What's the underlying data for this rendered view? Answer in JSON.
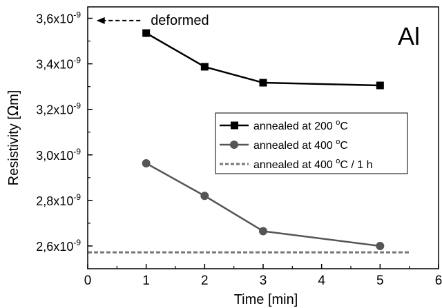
{
  "chart_data": {
    "type": "line",
    "title": "Al",
    "xlabel": "Time [min]",
    "ylabel_prefix": "Resistivity [",
    "ylabel_symbol": "Ω",
    "ylabel_suffix": "m]",
    "xlim": [
      0,
      6
    ],
    "ylim": [
      2.5,
      3.65
    ],
    "x_ticks": [
      0,
      1,
      2,
      3,
      4,
      5,
      6
    ],
    "y_ticks": [
      {
        "value": 2.6,
        "mantissa": "2,6x10",
        "exp": "-9"
      },
      {
        "value": 2.8,
        "mantissa": "2,8x10",
        "exp": "-9"
      },
      {
        "value": 3.0,
        "mantissa": "3,0x10",
        "exp": "-9"
      },
      {
        "value": 3.2,
        "mantissa": "3,2x10",
        "exp": "-9"
      },
      {
        "value": 3.4,
        "mantissa": "3,4x10",
        "exp": "-9"
      },
      {
        "value": 3.6,
        "mantissa": "3,6x10",
        "exp": "-9"
      }
    ],
    "grid": false,
    "legend_position": "middle-right",
    "series": [
      {
        "name": "annealed at 200 °C",
        "name_main": "annealed at 200 ",
        "name_sup": "o",
        "name_tail": "C",
        "marker": "square",
        "color": "#000000",
        "dashed": false,
        "x": [
          1,
          2,
          3,
          5
        ],
        "values": [
          3.535,
          3.387,
          3.317,
          3.305
        ]
      },
      {
        "name": "annealed at 400 °C",
        "name_main": "annealed at 400 ",
        "name_sup": "o",
        "name_tail": "C",
        "marker": "circle",
        "color": "#555555",
        "dashed": false,
        "x": [
          1,
          2,
          3,
          5
        ],
        "values": [
          2.963,
          2.82,
          2.665,
          2.6
        ]
      },
      {
        "name": "annealed at 400 °C / 1 h",
        "name_main": "annealed at 400 ",
        "name_sup": "o",
        "name_tail": "C / 1 h",
        "marker": "none",
        "color": "#777777",
        "dashed": true,
        "x": [
          0,
          5.5
        ],
        "values": [
          2.572,
          2.572
        ]
      }
    ],
    "annotation": {
      "text": "deformed",
      "value": 3.59,
      "x_from": 0.9,
      "x_to": 0.15
    }
  }
}
